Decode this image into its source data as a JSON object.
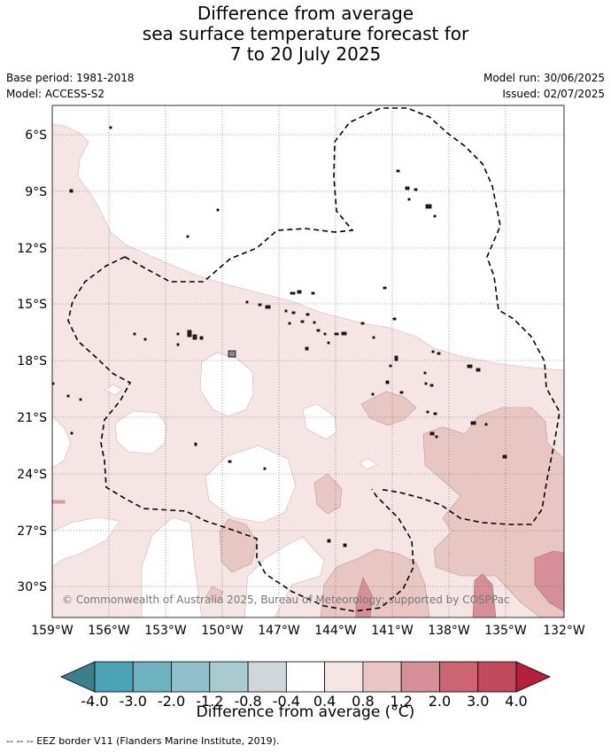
{
  "title": {
    "line1": "Difference from average",
    "line2": "sea surface temperature forecast for",
    "line3": "7 to 20 July 2025"
  },
  "meta": {
    "base_period": "Base period: 1981-2018",
    "model": "Model: ACCESS-S2",
    "model_run": "Model run: 30/06/2025",
    "issued": "Issued: 02/07/2025"
  },
  "map": {
    "lat_labels": [
      "6°S",
      "9°S",
      "12°S",
      "15°S",
      "18°S",
      "21°S",
      "24°S",
      "27°S",
      "30°S"
    ],
    "lon_labels": [
      "159°W",
      "156°W",
      "153°W",
      "150°W",
      "147°W",
      "144°W",
      "141°W",
      "138°W",
      "135°W",
      "132°W"
    ],
    "copyright": "© Commonwealth of Australia 2025, Bureau of Meteorology; supported by COSPPac",
    "border_color": "#000000"
  },
  "colorbar": {
    "tick_labels": [
      "-4.0",
      "-3.0",
      "-2.0",
      "-1.2",
      "-0.8",
      "-0.4",
      "0.4",
      "0.8",
      "1.2",
      "2.0",
      "3.0",
      "4.0"
    ],
    "colors": [
      "#3b7f8c",
      "#4aa3b4",
      "#6eb2c0",
      "#8fbfc9",
      "#a9cbd0",
      "#d0d7da",
      "#ffffff",
      "#f5e6e5",
      "#e7c6c3",
      "#d68f97",
      "#cc6472",
      "#c04a5a",
      "#b51f3b"
    ],
    "units_label": "Difference from average (°C)"
  },
  "footnote": "-- -- -- EEZ border V11 (Flanders Marine Institute, 2019)."
}
